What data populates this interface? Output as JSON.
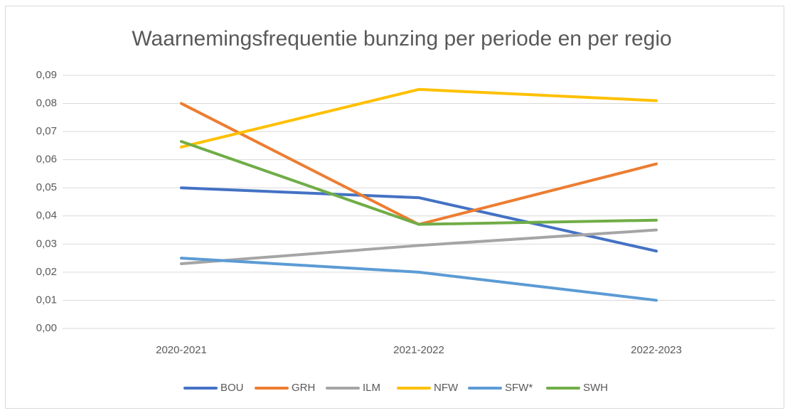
{
  "chart_data": {
    "type": "line",
    "title": "Waarnemingsfrequentie bunzing per periode en per regio",
    "categories": [
      "2020-2021",
      "2021-2022",
      "2022-2023"
    ],
    "series": [
      {
        "name": "BOU",
        "color": "#4472c4",
        "values": [
          0.05,
          0.0465,
          0.0275
        ]
      },
      {
        "name": "GRH",
        "color": "#ed7d31",
        "values": [
          0.08,
          0.037,
          0.0585
        ]
      },
      {
        "name": "ILM",
        "color": "#a5a5a5",
        "values": [
          0.023,
          0.0295,
          0.035
        ]
      },
      {
        "name": "NFW",
        "color": "#ffc000",
        "values": [
          0.0645,
          0.085,
          0.081
        ]
      },
      {
        "name": "SFW*",
        "color": "#5b9bd5",
        "values": [
          0.025,
          0.02,
          0.01
        ]
      },
      {
        "name": "SWH",
        "color": "#70ad47",
        "values": [
          0.0665,
          0.037,
          0.0385
        ]
      }
    ],
    "ylim": [
      0,
      0.09
    ],
    "yticks": [
      {
        "value": 0,
        "label": "0,00"
      },
      {
        "value": 0.01,
        "label": "0,01"
      },
      {
        "value": 0.02,
        "label": "0,02"
      },
      {
        "value": 0.03,
        "label": "0,03"
      },
      {
        "value": 0.04,
        "label": "0,04"
      },
      {
        "value": 0.05,
        "label": "0,05"
      },
      {
        "value": 0.06,
        "label": "0,06"
      },
      {
        "value": 0.07,
        "label": "0,07"
      },
      {
        "value": 0.08,
        "label": "0,08"
      },
      {
        "value": 0.09,
        "label": "0,09"
      }
    ],
    "grid": true,
    "legend": "bottom"
  }
}
